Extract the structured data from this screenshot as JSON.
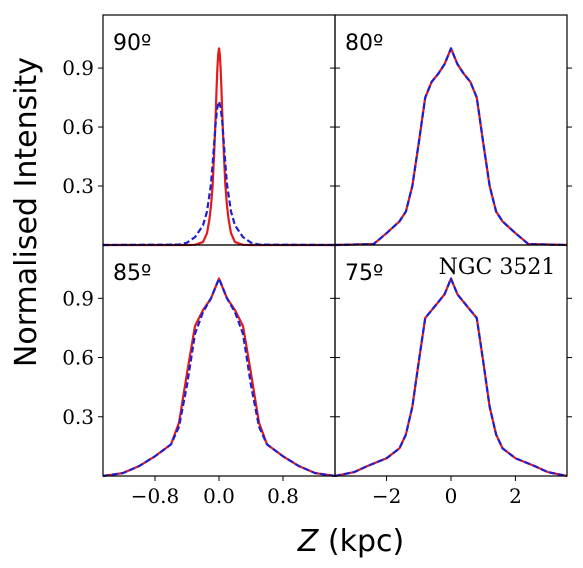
{
  "chart_data": {
    "type": "line",
    "ylabel": "Normalised Intensity",
    "xlabel_var": "Z",
    "xlabel_unit": " (kpc)",
    "annotation": "NGC 3521",
    "colors": {
      "model": "#e31a1c",
      "data": "#1f1fd1"
    },
    "yticks": [
      "0.3",
      "0.6",
      "0.9"
    ],
    "xticks_left": [
      "−0.8",
      "0.0",
      "0.8"
    ],
    "xticks_right": [
      "−2",
      "0",
      "2"
    ],
    "panels": [
      {
        "label": "90º",
        "xlim": [
          -1.45,
          1.45
        ],
        "ylim": [
          0,
          1.17
        ],
        "series": [
          {
            "style": "solid",
            "color": "#e31a1c",
            "x": [
              -1.45,
              -0.4,
              -0.3,
              -0.2,
              -0.15,
              -0.12,
              -0.1,
              -0.08,
              -0.06,
              -0.05,
              -0.04,
              -0.03,
              -0.02,
              -0.01,
              0,
              0.01,
              0.02,
              0.03,
              0.04,
              0.05,
              0.06,
              0.08,
              0.1,
              0.12,
              0.15,
              0.2,
              0.3,
              0.4,
              1.45
            ],
            "y": [
              0,
              0,
              0.001,
              0.015,
              0.06,
              0.13,
              0.2,
              0.3,
              0.47,
              0.57,
              0.68,
              0.8,
              0.9,
              0.97,
              1.0,
              0.97,
              0.9,
              0.8,
              0.68,
              0.57,
              0.47,
              0.3,
              0.2,
              0.13,
              0.06,
              0.015,
              0.001,
              0,
              0
            ]
          },
          {
            "style": "dashed",
            "color": "#1f1fd1",
            "x": [
              -1.45,
              -0.5,
              -0.4,
              -0.3,
              -0.2,
              -0.15,
              -0.1,
              -0.08,
              -0.06,
              -0.04,
              -0.02,
              0,
              0.02,
              0.04,
              0.06,
              0.08,
              0.1,
              0.15,
              0.2,
              0.3,
              0.4,
              0.5,
              1.45
            ],
            "y": [
              0,
              0.002,
              0.012,
              0.04,
              0.1,
              0.17,
              0.31,
              0.41,
              0.52,
              0.63,
              0.7,
              0.73,
              0.7,
              0.63,
              0.52,
              0.41,
              0.31,
              0.17,
              0.1,
              0.04,
              0.012,
              0.002,
              0
            ]
          }
        ]
      },
      {
        "label": "80º",
        "xlim": [
          -3.6,
          3.6
        ],
        "ylim": [
          0,
          1.17
        ],
        "series": [
          {
            "style": "solid",
            "color": "#e31a1c",
            "x": [
              -3.6,
              -2.4,
              -2.0,
              -1.6,
              -1.4,
              -1.2,
              -1.0,
              -0.8,
              -0.6,
              -0.4,
              -0.2,
              0,
              0.2,
              0.4,
              0.6,
              0.8,
              1.0,
              1.2,
              1.4,
              1.6,
              2.0,
              2.4,
              3.6
            ],
            "y": [
              0,
              0.005,
              0.06,
              0.12,
              0.17,
              0.3,
              0.52,
              0.75,
              0.83,
              0.87,
              0.92,
              1.0,
              0.92,
              0.87,
              0.83,
              0.75,
              0.52,
              0.3,
              0.17,
              0.12,
              0.06,
              0.005,
              0
            ]
          },
          {
            "style": "dashed",
            "color": "#1f1fd1",
            "x": [
              -3.6,
              -2.4,
              -2.0,
              -1.6,
              -1.4,
              -1.2,
              -1.0,
              -0.8,
              -0.6,
              -0.4,
              -0.2,
              0,
              0.2,
              0.4,
              0.6,
              0.8,
              1.0,
              1.2,
              1.4,
              1.6,
              2.0,
              2.4,
              3.6
            ],
            "y": [
              0,
              0.005,
              0.06,
              0.12,
              0.17,
              0.3,
              0.52,
              0.75,
              0.83,
              0.87,
              0.92,
              1.0,
              0.92,
              0.87,
              0.83,
              0.75,
              0.52,
              0.3,
              0.17,
              0.12,
              0.06,
              0.005,
              0
            ]
          }
        ]
      },
      {
        "label": "85º",
        "xlim": [
          -1.45,
          1.45
        ],
        "ylim": [
          0,
          1.17
        ],
        "series": [
          {
            "style": "solid",
            "color": "#e31a1c",
            "x": [
              -1.45,
              -1.2,
              -1.0,
              -0.8,
              -0.6,
              -0.5,
              -0.4,
              -0.3,
              -0.2,
              -0.1,
              0,
              0.1,
              0.2,
              0.3,
              0.4,
              0.5,
              0.6,
              0.8,
              1.0,
              1.2,
              1.45
            ],
            "y": [
              0,
              0.015,
              0.05,
              0.1,
              0.16,
              0.27,
              0.52,
              0.76,
              0.84,
              0.9,
              1.0,
              0.9,
              0.84,
              0.76,
              0.52,
              0.27,
              0.16,
              0.1,
              0.05,
              0.015,
              0
            ]
          },
          {
            "style": "dashed",
            "color": "#1f1fd1",
            "x": [
              -1.45,
              -1.2,
              -1.0,
              -0.8,
              -0.6,
              -0.5,
              -0.4,
              -0.3,
              -0.2,
              -0.1,
              0,
              0.1,
              0.2,
              0.3,
              0.4,
              0.5,
              0.6,
              0.8,
              1.0,
              1.2,
              1.45
            ],
            "y": [
              0,
              0.015,
              0.05,
              0.1,
              0.16,
              0.25,
              0.46,
              0.72,
              0.83,
              0.9,
              1.0,
              0.9,
              0.83,
              0.72,
              0.46,
              0.25,
              0.16,
              0.1,
              0.05,
              0.015,
              0
            ]
          }
        ]
      },
      {
        "label": "75º",
        "xlim": [
          -3.6,
          3.6
        ],
        "ylim": [
          0,
          1.17
        ],
        "series": [
          {
            "style": "solid",
            "color": "#e31a1c",
            "x": [
              -3.6,
              -3.0,
              -2.6,
              -2.0,
              -1.6,
              -1.4,
              -1.2,
              -1.0,
              -0.8,
              -0.6,
              -0.4,
              -0.2,
              0,
              0.2,
              0.4,
              0.6,
              0.8,
              1.0,
              1.2,
              1.4,
              1.6,
              2.0,
              2.6,
              3.0,
              3.6
            ],
            "y": [
              0,
              0.02,
              0.05,
              0.09,
              0.14,
              0.21,
              0.35,
              0.58,
              0.8,
              0.84,
              0.88,
              0.92,
              1.0,
              0.92,
              0.88,
              0.84,
              0.8,
              0.58,
              0.35,
              0.21,
              0.14,
              0.09,
              0.05,
              0.02,
              0
            ]
          },
          {
            "style": "dashed",
            "color": "#1f1fd1",
            "x": [
              -3.6,
              -3.0,
              -2.6,
              -2.0,
              -1.6,
              -1.4,
              -1.2,
              -1.0,
              -0.8,
              -0.6,
              -0.4,
              -0.2,
              0,
              0.2,
              0.4,
              0.6,
              0.8,
              1.0,
              1.2,
              1.4,
              1.6,
              2.0,
              2.6,
              3.0,
              3.6
            ],
            "y": [
              0,
              0.02,
              0.05,
              0.09,
              0.14,
              0.21,
              0.35,
              0.58,
              0.8,
              0.84,
              0.88,
              0.92,
              1.0,
              0.92,
              0.88,
              0.84,
              0.8,
              0.58,
              0.35,
              0.21,
              0.14,
              0.09,
              0.05,
              0.02,
              0
            ]
          }
        ]
      }
    ]
  }
}
